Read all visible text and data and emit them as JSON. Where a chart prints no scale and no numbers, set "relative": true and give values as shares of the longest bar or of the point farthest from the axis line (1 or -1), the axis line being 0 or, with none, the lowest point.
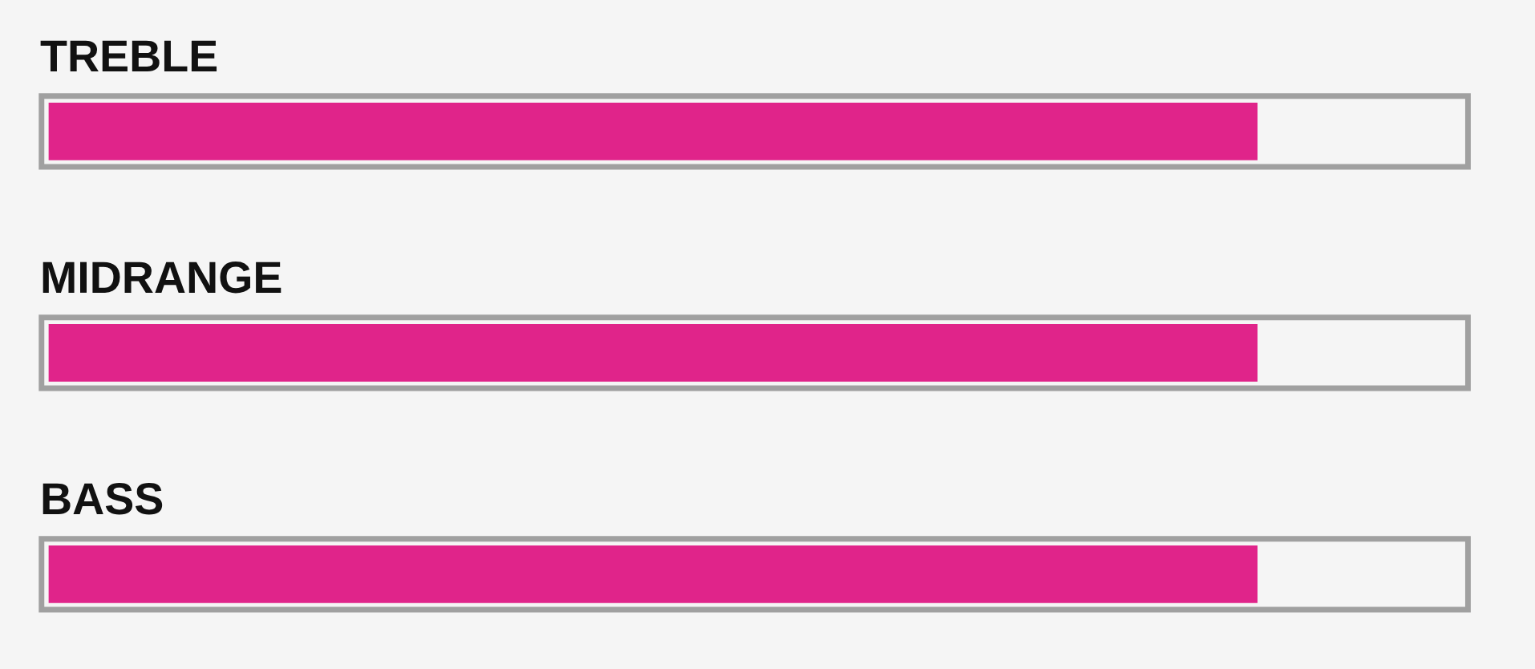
{
  "chart_data": {
    "type": "bar",
    "orientation": "horizontal",
    "relative": true,
    "categories": [
      "TREBLE",
      "MIDRANGE",
      "BASS"
    ],
    "values": [
      1,
      1,
      1
    ],
    "color": "#e0248a"
  }
}
